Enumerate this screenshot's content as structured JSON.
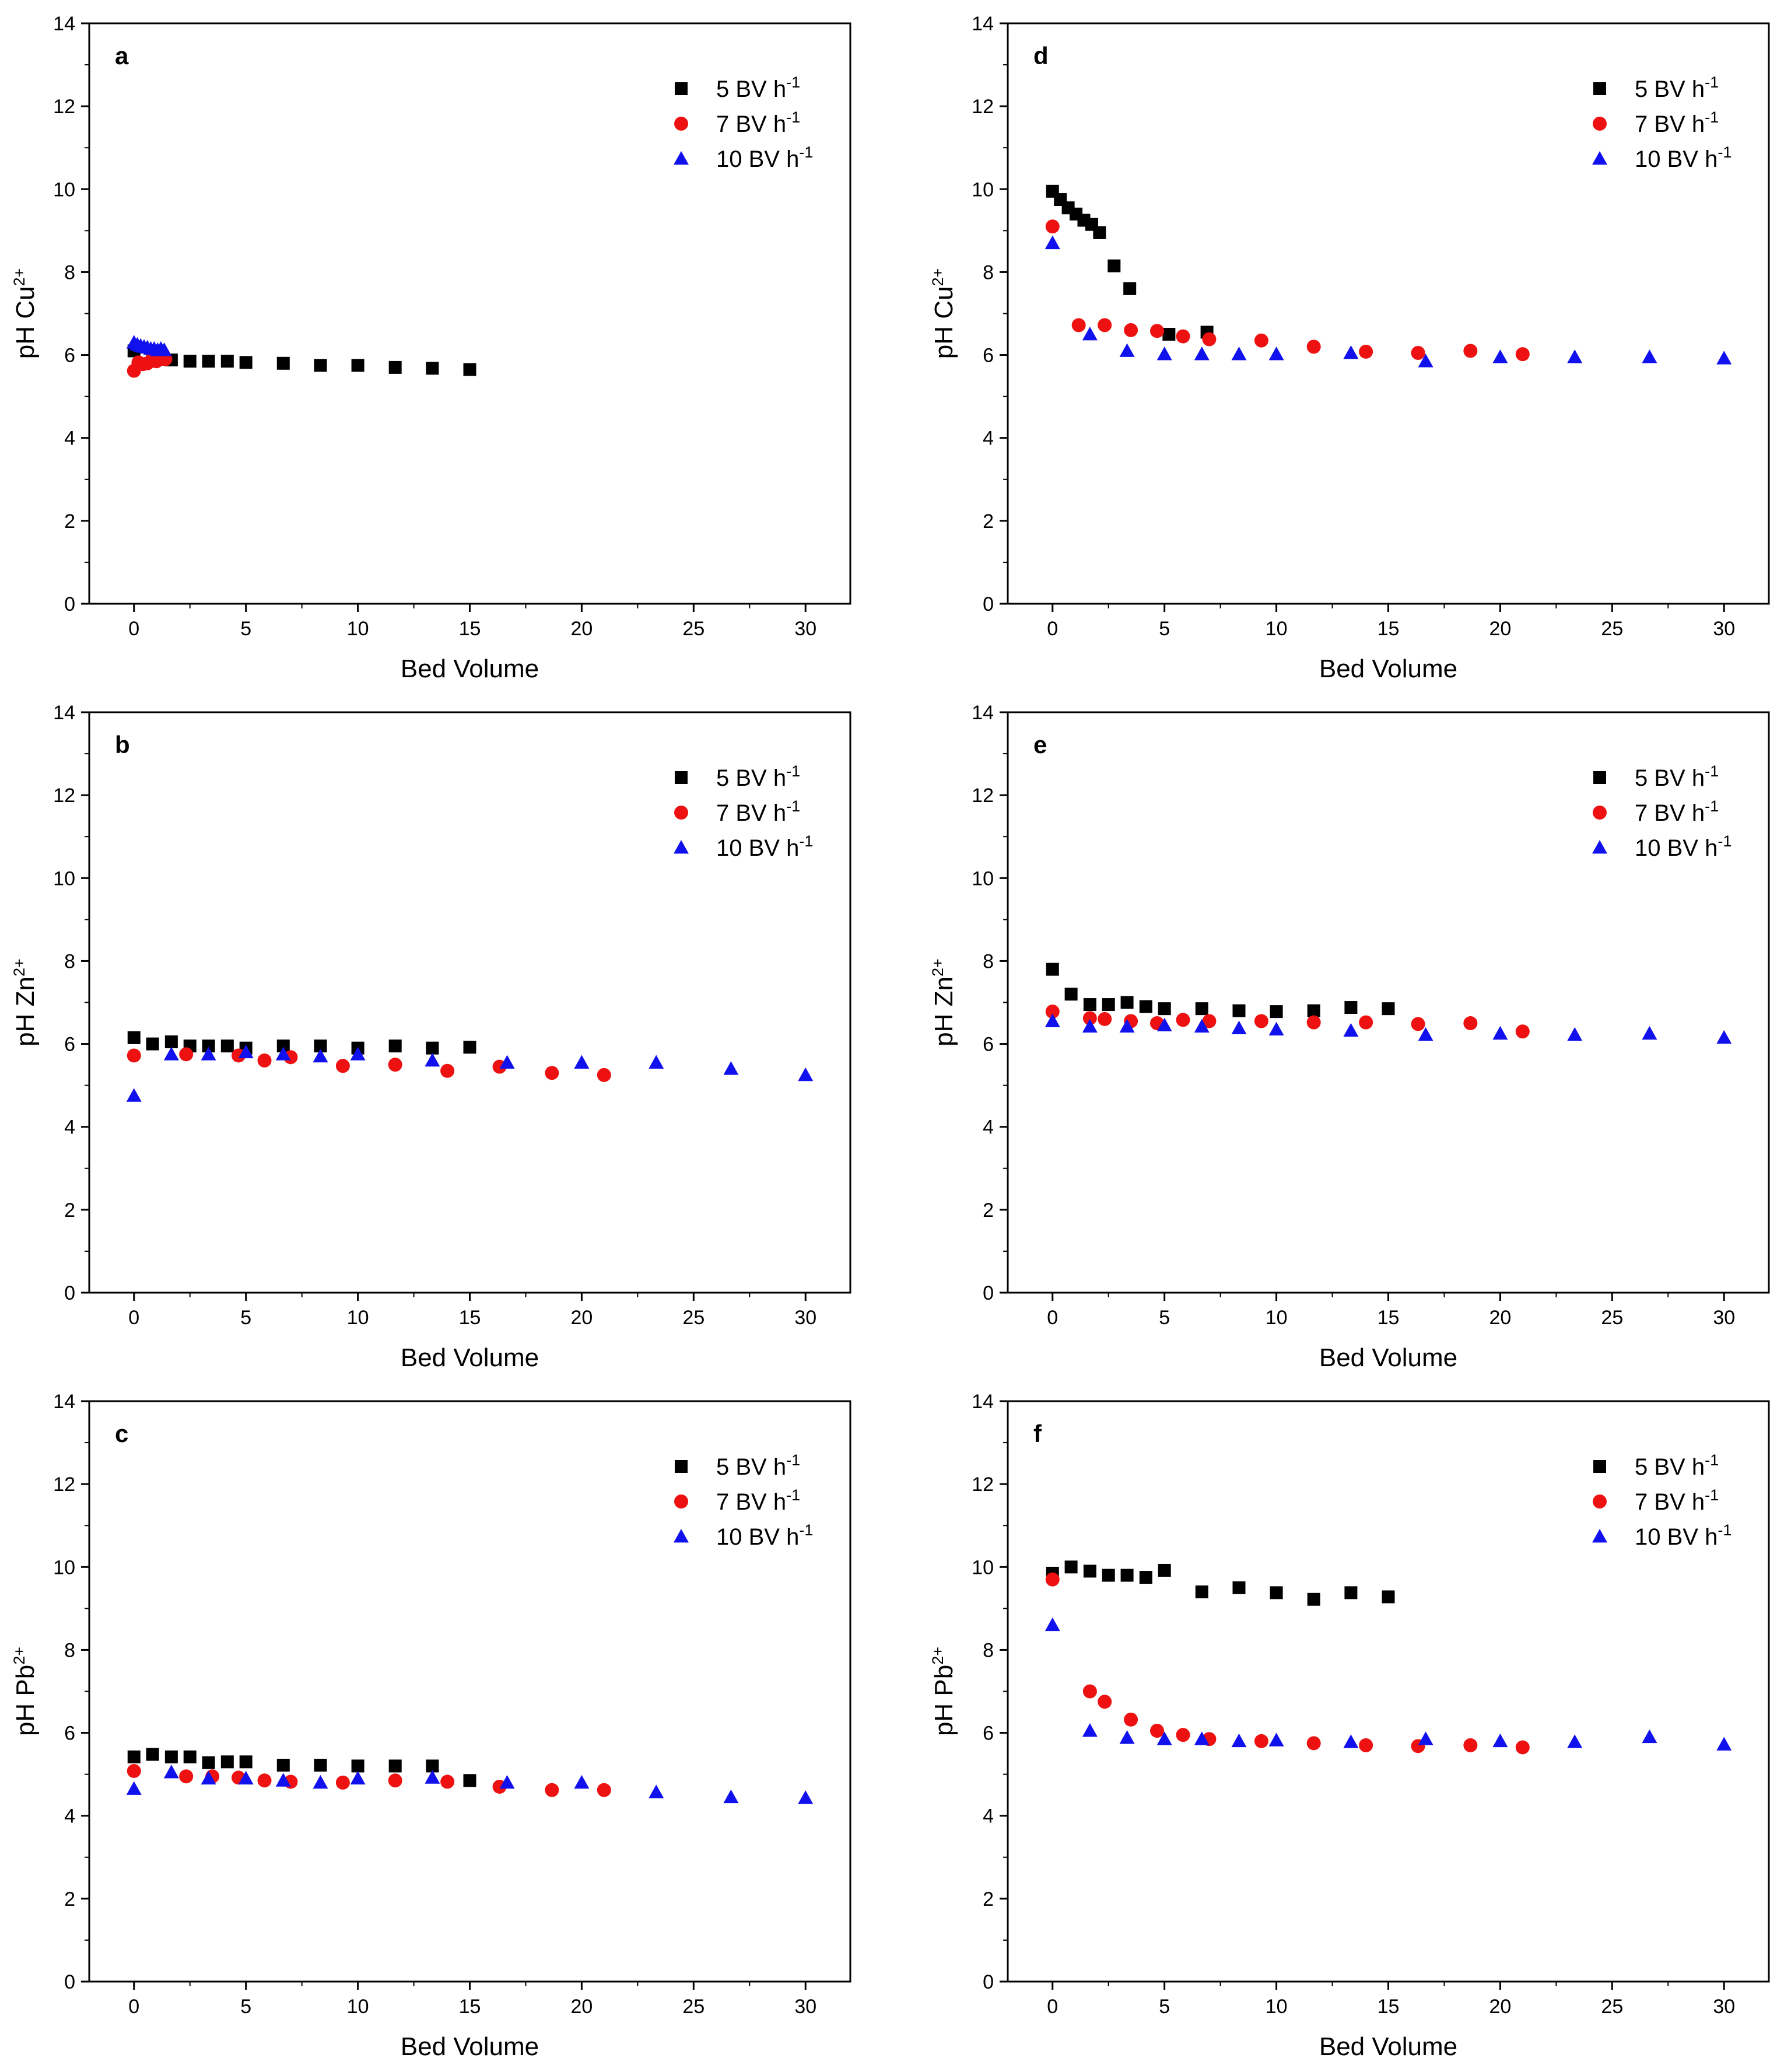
{
  "figure": {
    "colors": {
      "5 BV h-1": "#000000",
      "7 BV h-1": "#ee1111",
      "10 BV h-1": "#1111ee"
    },
    "legend_labels": [
      {
        "text": "5 BV h",
        "sup": "-1",
        "marker": "square"
      },
      {
        "text": "7 BV h",
        "sup": "-1",
        "marker": "circle"
      },
      {
        "text": "10 BV h",
        "sup": "-1",
        "marker": "triangle"
      }
    ]
  },
  "chart_data": [
    {
      "id": "a",
      "type": "scatter",
      "panel_label": "a",
      "xlabel": "Bed Volume",
      "ylabel_main": "pH Cu",
      "ylabel_sup": "2+",
      "xlim": [
        -2,
        32
      ],
      "ylim": [
        0,
        14
      ],
      "xticks": [
        "0",
        "5",
        "10",
        "15",
        "20",
        "25",
        "30"
      ],
      "yticks": [
        "0",
        "2",
        "4",
        "6",
        "8",
        "10",
        "12",
        "14"
      ],
      "legend_position": "top-right",
      "series": [
        {
          "name": "5 BV h-1",
          "marker": "square",
          "x": [
            0,
            0.83,
            1.67,
            2.5,
            3.33,
            4.17,
            5,
            6.67,
            8.33,
            10,
            11.67,
            13.33,
            15
          ],
          "y": [
            6.1,
            5.95,
            5.88,
            5.85,
            5.85,
            5.85,
            5.82,
            5.8,
            5.75,
            5.75,
            5.7,
            5.68,
            5.65
          ]
        },
        {
          "name": "7 BV h-1",
          "marker": "circle",
          "x": [
            0,
            0.2,
            0.4,
            0.6,
            0.8,
            1.0,
            1.2,
            1.4
          ],
          "y": [
            5.62,
            5.82,
            5.78,
            5.8,
            5.88,
            5.85,
            5.9,
            5.9
          ]
        },
        {
          "name": "10 BV h-1",
          "marker": "triangle",
          "x": [
            0,
            0.15,
            0.3,
            0.45,
            0.6,
            0.75,
            0.9,
            1.05,
            1.2,
            1.35
          ],
          "y": [
            6.3,
            6.25,
            6.22,
            6.2,
            6.18,
            6.15,
            6.15,
            6.12,
            6.15,
            6.12
          ]
        }
      ]
    },
    {
      "id": "b",
      "type": "scatter",
      "panel_label": "b",
      "xlabel": "Bed Volume",
      "ylabel_main": "pH Zn",
      "ylabel_sup": "2+",
      "xlim": [
        -2,
        32
      ],
      "ylim": [
        0,
        14
      ],
      "xticks": [
        "0",
        "5",
        "10",
        "15",
        "20",
        "25",
        "30"
      ],
      "yticks": [
        "0",
        "2",
        "4",
        "6",
        "8",
        "10",
        "12",
        "14"
      ],
      "legend_position": "top-right",
      "series": [
        {
          "name": "5 BV h-1",
          "marker": "square",
          "x": [
            0,
            0.83,
            1.67,
            2.5,
            3.33,
            4.17,
            5,
            6.67,
            8.33,
            10,
            11.67,
            13.33,
            15
          ],
          "y": [
            6.15,
            6.0,
            6.05,
            5.95,
            5.95,
            5.95,
            5.9,
            5.95,
            5.95,
            5.9,
            5.95,
            5.9,
            5.92
          ]
        },
        {
          "name": "7 BV h-1",
          "marker": "circle",
          "x": [
            0,
            2.33,
            4.67,
            5.83,
            7,
            9.33,
            11.67,
            14,
            16.33,
            18.67,
            21
          ],
          "y": [
            5.72,
            5.75,
            5.72,
            5.6,
            5.68,
            5.47,
            5.5,
            5.35,
            5.45,
            5.3,
            5.25
          ]
        },
        {
          "name": "10 BV h-1",
          "marker": "triangle",
          "x": [
            0,
            1.67,
            3.33,
            5,
            6.67,
            8.33,
            10,
            13.33,
            16.67,
            20,
            23.33,
            26.67,
            30
          ],
          "y": [
            4.75,
            5.75,
            5.75,
            5.8,
            5.75,
            5.7,
            5.75,
            5.6,
            5.55,
            5.55,
            5.55,
            5.4,
            5.25
          ]
        }
      ]
    },
    {
      "id": "c",
      "type": "scatter",
      "panel_label": "c",
      "xlabel": "Bed Volume",
      "ylabel_main": "pH Pb",
      "ylabel_sup": "2+",
      "xlim": [
        -2,
        32
      ],
      "ylim": [
        0,
        14
      ],
      "xticks": [
        "0",
        "5",
        "10",
        "15",
        "20",
        "25",
        "30"
      ],
      "yticks": [
        "0",
        "2",
        "4",
        "6",
        "8",
        "10",
        "12",
        "14"
      ],
      "legend_position": "top-right",
      "series": [
        {
          "name": "5 BV h-1",
          "marker": "square",
          "x": [
            0,
            0.83,
            1.67,
            2.5,
            3.33,
            4.17,
            5,
            6.67,
            8.33,
            10,
            11.67,
            13.33,
            15
          ],
          "y": [
            5.42,
            5.48,
            5.42,
            5.42,
            5.28,
            5.3,
            5.3,
            5.22,
            5.22,
            5.2,
            5.2,
            5.2,
            4.85
          ]
        },
        {
          "name": "7 BV h-1",
          "marker": "circle",
          "x": [
            0,
            2.33,
            3.5,
            4.67,
            5.83,
            7,
            9.33,
            11.67,
            14,
            16.33,
            18.67,
            21
          ],
          "y": [
            5.08,
            4.95,
            4.95,
            4.92,
            4.85,
            4.82,
            4.8,
            4.85,
            4.82,
            4.7,
            4.62,
            4.62
          ]
        },
        {
          "name": "10 BV h-1",
          "marker": "triangle",
          "x": [
            0,
            1.67,
            3.33,
            5,
            6.67,
            8.33,
            10,
            13.33,
            16.67,
            20,
            23.33,
            26.67,
            30
          ],
          "y": [
            4.65,
            5.05,
            4.9,
            4.9,
            4.85,
            4.8,
            4.9,
            4.92,
            4.8,
            4.8,
            4.57,
            4.45,
            4.43
          ]
        }
      ]
    },
    {
      "id": "d",
      "type": "scatter",
      "panel_label": "d",
      "xlabel": "Bed Volume",
      "ylabel_main": "pH Cu",
      "ylabel_sup": "2+",
      "xlim": [
        -2,
        32
      ],
      "ylim": [
        0,
        14
      ],
      "xticks": [
        "0",
        "5",
        "10",
        "15",
        "20",
        "25",
        "30"
      ],
      "yticks": [
        "0",
        "2",
        "4",
        "6",
        "8",
        "10",
        "12",
        "14"
      ],
      "legend_position": "top-right",
      "series": [
        {
          "name": "5 BV h-1",
          "marker": "square",
          "x": [
            0,
            0.35,
            0.7,
            1.05,
            1.4,
            1.75,
            2.1,
            2.75,
            3.45,
            5.2,
            6.9
          ],
          "y": [
            9.95,
            9.75,
            9.55,
            9.4,
            9.25,
            9.15,
            8.95,
            8.15,
            7.6,
            6.5,
            6.55
          ]
        },
        {
          "name": "7 BV h-1",
          "marker": "circle",
          "x": [
            0,
            1.17,
            2.33,
            3.5,
            4.67,
            5.83,
            7,
            9.33,
            11.67,
            14,
            16.33,
            18.67,
            21
          ],
          "y": [
            9.1,
            6.72,
            6.72,
            6.6,
            6.58,
            6.45,
            6.38,
            6.35,
            6.2,
            6.08,
            6.05,
            6.1,
            6.02
          ]
        },
        {
          "name": "10 BV h-1",
          "marker": "triangle",
          "x": [
            0,
            1.67,
            3.33,
            5,
            6.67,
            8.33,
            10,
            13.33,
            16.67,
            20,
            23.33,
            26.67,
            30
          ],
          "y": [
            8.7,
            6.5,
            6.1,
            6.02,
            6.02,
            6.02,
            6.02,
            6.05,
            5.85,
            5.95,
            5.95,
            5.95,
            5.92
          ]
        }
      ]
    },
    {
      "id": "e",
      "type": "scatter",
      "panel_label": "e",
      "xlabel": "Bed Volume",
      "ylabel_main": "pH Zn",
      "ylabel_sup": "2+",
      "xlim": [
        -2,
        32
      ],
      "ylim": [
        0,
        14
      ],
      "xticks": [
        "0",
        "5",
        "10",
        "15",
        "20",
        "25",
        "30"
      ],
      "yticks": [
        "0",
        "2",
        "4",
        "6",
        "8",
        "10",
        "12",
        "14"
      ],
      "legend_position": "top-right",
      "series": [
        {
          "name": "5 BV h-1",
          "marker": "square",
          "x": [
            0,
            0.83,
            1.67,
            2.5,
            3.33,
            4.17,
            5,
            6.67,
            8.33,
            10,
            11.67,
            13.33,
            15
          ],
          "y": [
            7.8,
            7.2,
            6.95,
            6.95,
            7.0,
            6.9,
            6.85,
            6.85,
            6.8,
            6.78,
            6.8,
            6.88,
            6.85
          ]
        },
        {
          "name": "7 BV h-1",
          "marker": "circle",
          "x": [
            0,
            1.67,
            2.33,
            3.5,
            4.67,
            5.83,
            7,
            9.33,
            11.67,
            14,
            16.33,
            18.67,
            21
          ],
          "y": [
            6.78,
            6.62,
            6.6,
            6.55,
            6.5,
            6.58,
            6.55,
            6.55,
            6.52,
            6.52,
            6.48,
            6.5,
            6.3
          ]
        },
        {
          "name": "10 BV h-1",
          "marker": "triangle",
          "x": [
            0,
            1.67,
            3.33,
            5,
            6.67,
            8.33,
            10,
            13.33,
            16.67,
            20,
            23.33,
            26.67,
            30
          ],
          "y": [
            6.55,
            6.42,
            6.42,
            6.45,
            6.42,
            6.38,
            6.35,
            6.32,
            6.22,
            6.25,
            6.22,
            6.25,
            6.15
          ]
        }
      ]
    },
    {
      "id": "f",
      "type": "scatter",
      "panel_label": "f",
      "xlabel": "Bed Volume",
      "ylabel_main": "pH Pb",
      "ylabel_sup": "2+",
      "xlim": [
        -2,
        32
      ],
      "ylim": [
        0,
        14
      ],
      "xticks": [
        "0",
        "5",
        "10",
        "15",
        "20",
        "25",
        "30"
      ],
      "yticks": [
        "0",
        "2",
        "4",
        "6",
        "8",
        "10",
        "12",
        "14"
      ],
      "legend_position": "top-right",
      "series": [
        {
          "name": "5 BV h-1",
          "marker": "square",
          "x": [
            0,
            0.83,
            1.67,
            2.5,
            3.33,
            4.17,
            5,
            6.67,
            8.33,
            10,
            11.67,
            13.33,
            15
          ],
          "y": [
            9.85,
            10.0,
            9.9,
            9.8,
            9.8,
            9.75,
            9.92,
            9.4,
            9.5,
            9.38,
            9.22,
            9.38,
            9.28
          ]
        },
        {
          "name": "7 BV h-1",
          "marker": "circle",
          "x": [
            0,
            1.67,
            2.33,
            3.5,
            4.67,
            5.83,
            7,
            9.33,
            11.67,
            14,
            16.33,
            18.67,
            21
          ],
          "y": [
            9.7,
            7.0,
            6.75,
            6.32,
            6.05,
            5.95,
            5.85,
            5.8,
            5.75,
            5.7,
            5.68,
            5.7,
            5.65
          ]
        },
        {
          "name": "10 BV h-1",
          "marker": "triangle",
          "x": [
            0,
            1.67,
            3.33,
            5,
            6.67,
            8.33,
            10,
            13.33,
            16.67,
            20,
            23.33,
            26.67,
            30
          ],
          "y": [
            8.6,
            6.05,
            5.88,
            5.85,
            5.85,
            5.8,
            5.82,
            5.78,
            5.85,
            5.8,
            5.78,
            5.9,
            5.72
          ]
        }
      ]
    }
  ]
}
